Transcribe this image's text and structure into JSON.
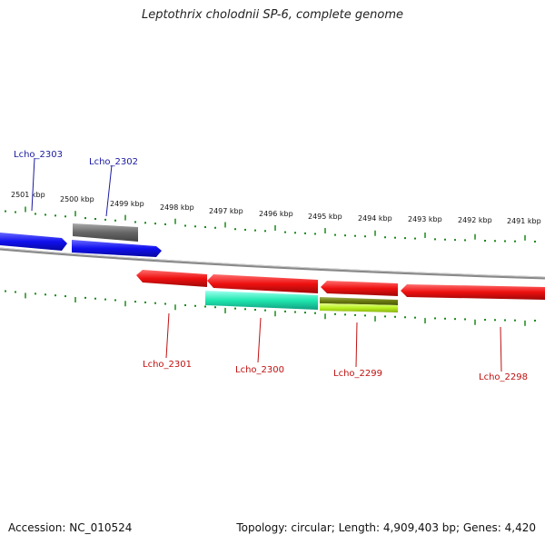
{
  "title": "Leptothrix cholodnii SP-6, complete genome",
  "accession": "Accession: NC_010524",
  "stats": "Topology: circular; Length: 4,909,403 bp; Genes: 4,420",
  "scale_labels": [
    "2501 kbp",
    "2500 kbp",
    "2499 kbp",
    "2498 kbp",
    "2497 kbp",
    "2496 kbp",
    "2495 kbp",
    "2494 kbp",
    "2493 kbp",
    "2492 kbp",
    "2491 kbp"
  ],
  "colors": {
    "forward_gene": "#1010ee",
    "reverse_gene": "#ee1010",
    "rna_gene": "#666666",
    "forward_label": "#1a1aa0",
    "reverse_label": "#c01010",
    "tick": "#1a8a1a",
    "backbone": "#888888"
  },
  "genes": [
    {
      "label": "",
      "strand": "forward",
      "color": "#1010ee"
    },
    {
      "label": "Lcho_2303",
      "strand": "forward",
      "color": "#1010ee"
    },
    {
      "label": "Lcho_2302",
      "strand": "forward",
      "color": "#666666"
    },
    {
      "label": "Lcho_2301",
      "strand": "reverse",
      "color": "#ee1010"
    },
    {
      "label": "Lcho_2300",
      "strand": "reverse",
      "color": "#ee1010"
    },
    {
      "label": "",
      "strand": "reverse",
      "color": "#20e8b0"
    },
    {
      "label": "",
      "strand": "reverse",
      "color": "#ee1010"
    },
    {
      "label": "Lcho_2299",
      "strand": "reverse",
      "color": "#6a7a10"
    },
    {
      "label": "",
      "strand": "reverse",
      "color": "#b8f020"
    },
    {
      "label": "Lcho_2298",
      "strand": "reverse",
      "color": "#ee1010"
    }
  ]
}
